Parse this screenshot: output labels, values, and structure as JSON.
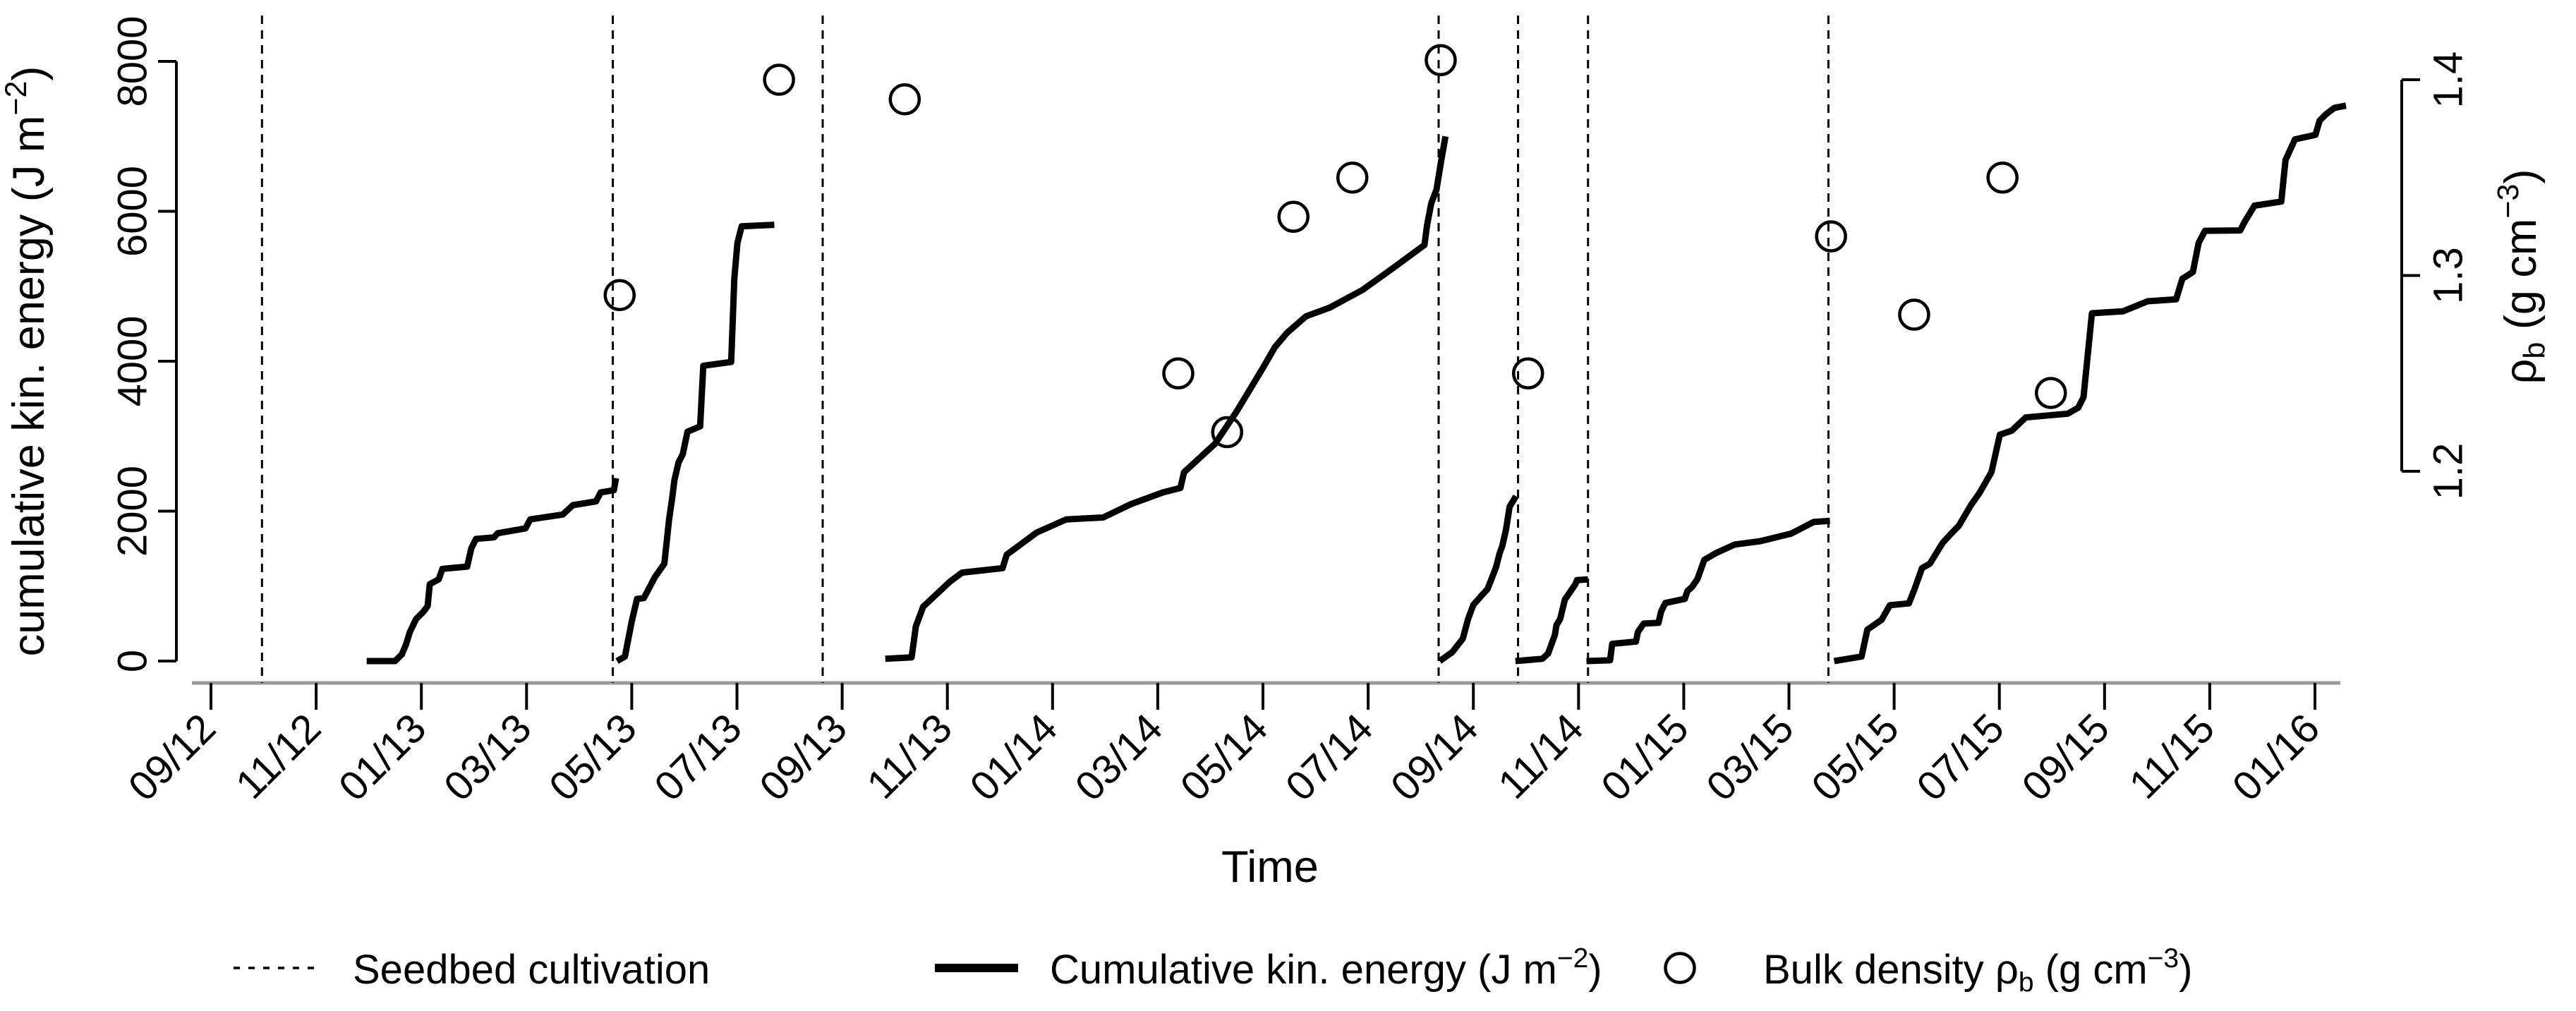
{
  "chart_data": {
    "type": "line",
    "title": "",
    "xlabel": "Time",
    "x_tick_labels": [
      "09/12",
      "11/12",
      "01/13",
      "03/13",
      "05/13",
      "07/13",
      "09/13",
      "11/13",
      "01/14",
      "03/14",
      "05/14",
      "07/14",
      "09/14",
      "11/14",
      "01/15",
      "03/15",
      "05/15",
      "07/15",
      "09/15",
      "11/15",
      "01/16"
    ],
    "x_tick_month_positions": [
      0,
      2,
      4,
      6,
      8,
      10,
      12,
      14,
      16,
      18,
      20,
      22,
      24,
      26,
      28,
      30,
      32,
      34,
      36,
      38,
      40
    ],
    "x_domain_months": [
      -0.7,
      41.0
    ],
    "ylabel_left_parts": [
      {
        "t": "cumulative kin. energy (J m"
      },
      {
        "t": "−2",
        "sup": true
      },
      {
        "t": ")"
      }
    ],
    "y_ticks_left_labels": [
      "0",
      "2000",
      "4000",
      "6000",
      "8000"
    ],
    "y_ticks_left_values": [
      0,
      2000,
      4000,
      6000,
      8000
    ],
    "ylim_left": [
      0,
      8000
    ],
    "ylabel_right_parts": [
      {
        "t": "ρ"
      },
      {
        "t": "b",
        "sub": true
      },
      {
        "t": " (g cm"
      },
      {
        "t": "−3",
        "sup": true
      },
      {
        "t": ")"
      }
    ],
    "y_ticks_right_labels": [
      "1.2",
      "1.3",
      "1.4"
    ],
    "y_ticks_right_values": [
      1.2,
      1.3,
      1.4
    ],
    "ylim_right": [
      1.2,
      1.4
    ],
    "grid": false,
    "legend_position": "bottom",
    "seedbed_cultivation_months": [
      0.97,
      7.64,
      11.63,
      23.34,
      24.85,
      26.18,
      30.75
    ],
    "cumulative_energy_segments": [
      [
        [
          2.96,
          0
        ],
        [
          3.5,
          0
        ],
        [
          3.63,
          90
        ],
        [
          3.71,
          225
        ],
        [
          3.78,
          385
        ],
        [
          3.9,
          560
        ],
        [
          4.04,
          660
        ],
        [
          4.12,
          735
        ],
        [
          4.16,
          1025
        ],
        [
          4.33,
          1090
        ],
        [
          4.4,
          1230
        ],
        [
          4.87,
          1260
        ],
        [
          4.95,
          1505
        ],
        [
          5.04,
          1630
        ],
        [
          5.38,
          1650
        ],
        [
          5.45,
          1705
        ],
        [
          5.98,
          1770
        ],
        [
          6.07,
          1890
        ],
        [
          6.69,
          1955
        ],
        [
          6.88,
          2080
        ],
        [
          7.32,
          2130
        ],
        [
          7.41,
          2250
        ],
        [
          7.66,
          2280
        ],
        [
          7.7,
          2440
        ]
      ],
      [
        [
          7.72,
          0
        ],
        [
          7.87,
          60
        ],
        [
          8.0,
          530
        ],
        [
          8.1,
          830
        ],
        [
          8.23,
          840
        ],
        [
          8.44,
          1120
        ],
        [
          8.62,
          1300
        ],
        [
          8.71,
          1890
        ],
        [
          8.77,
          2180
        ],
        [
          8.81,
          2410
        ],
        [
          8.89,
          2650
        ],
        [
          8.97,
          2760
        ],
        [
          9.06,
          3060
        ],
        [
          9.3,
          3130
        ],
        [
          9.36,
          3940
        ],
        [
          9.89,
          3990
        ],
        [
          9.95,
          5110
        ],
        [
          10.01,
          5580
        ],
        [
          10.09,
          5800
        ],
        [
          10.71,
          5820
        ]
      ],
      [
        [
          12.82,
          30
        ],
        [
          13.32,
          50
        ],
        [
          13.36,
          250
        ],
        [
          13.4,
          460
        ],
        [
          13.54,
          725
        ],
        [
          14.05,
          1060
        ],
        [
          14.28,
          1180
        ],
        [
          15.05,
          1240
        ],
        [
          15.13,
          1420
        ],
        [
          15.7,
          1715
        ],
        [
          16.26,
          1890
        ],
        [
          16.96,
          1915
        ],
        [
          17.48,
          2090
        ],
        [
          18.1,
          2250
        ],
        [
          18.43,
          2310
        ],
        [
          18.5,
          2520
        ],
        [
          19.09,
          2900
        ],
        [
          19.5,
          3330
        ],
        [
          19.99,
          3900
        ],
        [
          20.23,
          4190
        ],
        [
          20.46,
          4380
        ],
        [
          20.82,
          4600
        ],
        [
          21.27,
          4715
        ],
        [
          21.89,
          4950
        ],
        [
          22.41,
          5210
        ],
        [
          22.68,
          5350
        ],
        [
          23.07,
          5550
        ],
        [
          23.12,
          5815
        ],
        [
          23.2,
          6110
        ],
        [
          23.3,
          6290
        ],
        [
          23.38,
          6640
        ],
        [
          23.47,
          7000
        ]
      ],
      [
        [
          23.36,
          0
        ],
        [
          23.6,
          120
        ],
        [
          23.8,
          300
        ],
        [
          23.9,
          560
        ],
        [
          24.0,
          750
        ],
        [
          24.15,
          870
        ],
        [
          24.27,
          960
        ],
        [
          24.43,
          1250
        ],
        [
          24.5,
          1440
        ],
        [
          24.55,
          1535
        ],
        [
          24.62,
          1750
        ],
        [
          24.69,
          2060
        ],
        [
          24.81,
          2200
        ]
      ],
      [
        [
          24.8,
          0
        ],
        [
          25.31,
          30
        ],
        [
          25.42,
          100
        ],
        [
          25.55,
          350
        ],
        [
          25.58,
          480
        ],
        [
          25.65,
          560
        ],
        [
          25.71,
          735
        ],
        [
          25.74,
          820
        ],
        [
          25.94,
          1025
        ],
        [
          25.97,
          1080
        ],
        [
          26.18,
          1090
        ]
      ],
      [
        [
          26.15,
          0
        ],
        [
          26.6,
          10
        ],
        [
          26.64,
          230
        ],
        [
          27.09,
          260
        ],
        [
          27.13,
          390
        ],
        [
          27.24,
          500
        ],
        [
          27.52,
          510
        ],
        [
          27.57,
          660
        ],
        [
          27.65,
          775
        ],
        [
          28.02,
          830
        ],
        [
          28.07,
          935
        ],
        [
          28.16,
          990
        ],
        [
          28.26,
          1095
        ],
        [
          28.39,
          1350
        ],
        [
          28.61,
          1440
        ],
        [
          28.97,
          1555
        ],
        [
          29.46,
          1600
        ],
        [
          30.04,
          1700
        ],
        [
          30.47,
          1855
        ],
        [
          30.78,
          1870
        ]
      ],
      [
        [
          30.86,
          0
        ],
        [
          31.38,
          60
        ],
        [
          31.49,
          420
        ],
        [
          31.76,
          550
        ],
        [
          31.92,
          745
        ],
        [
          32.28,
          770
        ],
        [
          32.39,
          965
        ],
        [
          32.53,
          1240
        ],
        [
          32.68,
          1300
        ],
        [
          32.92,
          1575
        ],
        [
          33.07,
          1690
        ],
        [
          33.23,
          1805
        ],
        [
          33.46,
          2080
        ],
        [
          33.62,
          2240
        ],
        [
          33.85,
          2520
        ],
        [
          34.01,
          3020
        ],
        [
          34.24,
          3075
        ],
        [
          34.5,
          3250
        ],
        [
          35.3,
          3300
        ],
        [
          35.5,
          3380
        ],
        [
          35.6,
          3520
        ],
        [
          35.76,
          4640
        ],
        [
          36.35,
          4665
        ],
        [
          36.82,
          4800
        ],
        [
          37.36,
          4825
        ],
        [
          37.48,
          5100
        ],
        [
          37.68,
          5190
        ],
        [
          37.79,
          5580
        ],
        [
          37.91,
          5740
        ],
        [
          38.58,
          5745
        ],
        [
          38.66,
          5855
        ],
        [
          38.85,
          6075
        ],
        [
          39.36,
          6130
        ],
        [
          39.44,
          6685
        ],
        [
          39.62,
          6960
        ],
        [
          40.01,
          7020
        ],
        [
          40.09,
          7210
        ],
        [
          40.21,
          7295
        ],
        [
          40.37,
          7380
        ],
        [
          40.59,
          7410
        ]
      ]
    ],
    "bulk_density_points": [
      {
        "month": 7.77,
        "rho": 1.29
      },
      {
        "month": 10.8,
        "rho": 1.4
      },
      {
        "month": 13.19,
        "rho": 1.39
      },
      {
        "month": 18.39,
        "rho": 1.25
      },
      {
        "month": 19.32,
        "rho": 1.22
      },
      {
        "month": 20.58,
        "rho": 1.33
      },
      {
        "month": 21.7,
        "rho": 1.35
      },
      {
        "month": 23.38,
        "rho": 1.41
      },
      {
        "month": 25.04,
        "rho": 1.25
      },
      {
        "month": 30.8,
        "rho": 1.32
      },
      {
        "month": 32.38,
        "rho": 1.28
      },
      {
        "month": 34.06,
        "rho": 1.35
      },
      {
        "month": 34.98,
        "rho": 1.24
      }
    ],
    "legend": [
      {
        "marker": "dashed-line",
        "label_parts": [
          {
            "t": "Seedbed cultivation"
          }
        ]
      },
      {
        "marker": "solid-line",
        "label_parts": [
          {
            "t": "Cumulative kin. energy (J m"
          },
          {
            "t": "−2",
            "sup": true
          },
          {
            "t": ")"
          }
        ]
      },
      {
        "marker": "open-circle",
        "label_parts": [
          {
            "t": "Bulk density "
          },
          {
            "t": "ρ"
          },
          {
            "t": "b",
            "sub": true
          },
          {
            "t": " (g cm"
          },
          {
            "t": "−3",
            "sup": true
          },
          {
            "t": ")"
          }
        ]
      }
    ],
    "colors": {
      "line": "#000000",
      "axis": "#999999",
      "text": "#000000",
      "background": "#ffffff"
    }
  }
}
